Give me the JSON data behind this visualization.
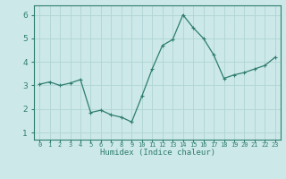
{
  "x": [
    0,
    1,
    2,
    3,
    4,
    5,
    6,
    7,
    8,
    9,
    10,
    11,
    12,
    13,
    14,
    15,
    16,
    17,
    18,
    19,
    20,
    21,
    22,
    23
  ],
  "y": [
    3.05,
    3.15,
    3.0,
    3.1,
    3.25,
    1.85,
    1.95,
    1.75,
    1.65,
    1.45,
    2.55,
    3.7,
    4.7,
    4.95,
    6.0,
    5.45,
    5.0,
    4.3,
    3.3,
    3.45,
    3.55,
    3.7,
    3.85,
    4.2
  ],
  "line_color": "#2e7d6e",
  "marker": "+",
  "bg_color": "#cce8e8",
  "grid_color": "#b0d4d4",
  "xlabel": "Humidex (Indice chaleur)",
  "xlim": [
    -0.5,
    23.5
  ],
  "ylim": [
    0.7,
    6.4
  ],
  "yticks": [
    1,
    2,
    3,
    4,
    5,
    6
  ],
  "xtick_labels": [
    "0",
    "1",
    "2",
    "3",
    "4",
    "5",
    "6",
    "7",
    "8",
    "9",
    "10",
    "11",
    "12",
    "13",
    "14",
    "15",
    "16",
    "17",
    "18",
    "19",
    "20",
    "21",
    "22",
    "23"
  ]
}
